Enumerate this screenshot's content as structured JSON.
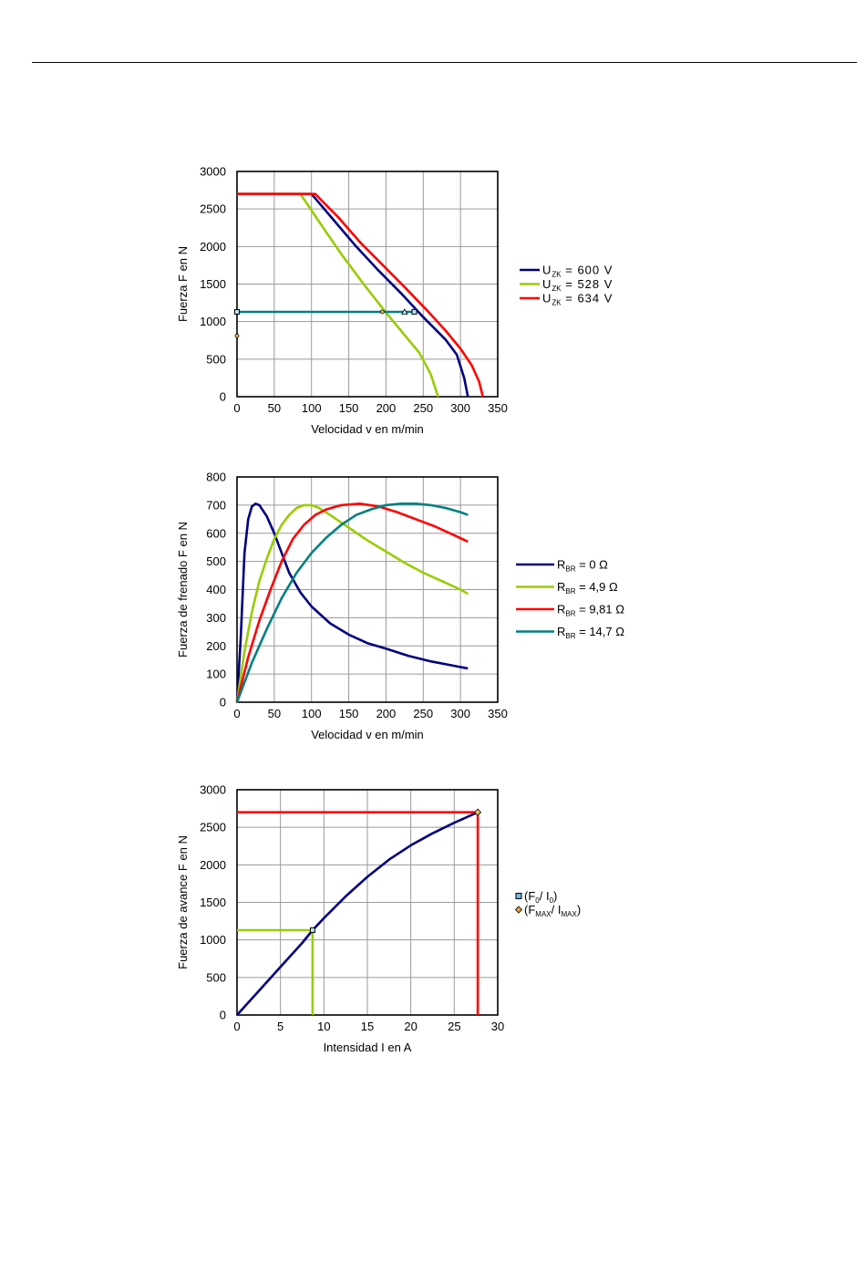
{
  "chart_data": [
    {
      "type": "line",
      "xlabel": "Velocidad v en m/min",
      "ylabel": "Fuerza F en N",
      "xlim": [
        0,
        350
      ],
      "ylim": [
        0,
        3000
      ],
      "xticks": [
        "0",
        "50",
        "100",
        "150",
        "200",
        "250",
        "300",
        "350"
      ],
      "yticks": [
        "0",
        "500",
        "1000",
        "1500",
        "2000",
        "2500",
        "3000"
      ],
      "grid": true,
      "legend_position": "right",
      "series": [
        {
          "name_main": "U",
          "name_sub": "ZK",
          "name_rest": " = 600 V",
          "color": "#000080",
          "points": [
            [
              0,
              2700
            ],
            [
              100,
              2700
            ],
            [
              130,
              2350
            ],
            [
              160,
              2000
            ],
            [
              190,
              1680
            ],
            [
              220,
              1380
            ],
            [
              250,
              1060
            ],
            [
              280,
              760
            ],
            [
              295,
              560
            ],
            [
              305,
              250
            ],
            [
              310,
              0
            ]
          ]
        },
        {
          "name_main": "U",
          "name_sub": "ZK",
          "name_rest": " = 528 V",
          "color": "#99cc00",
          "points": [
            [
              0,
              2700
            ],
            [
              85,
              2700
            ],
            [
              115,
              2260
            ],
            [
              140,
              1900
            ],
            [
              170,
              1500
            ],
            [
              200,
              1120
            ],
            [
              220,
              880
            ],
            [
              245,
              580
            ],
            [
              260,
              300
            ],
            [
              270,
              0
            ]
          ]
        },
        {
          "name_main": "U",
          "name_sub": "ZK",
          "name_rest": " = 634 V",
          "color": "#ff0000",
          "points": [
            [
              0,
              2700
            ],
            [
              105,
              2700
            ],
            [
              135,
              2400
            ],
            [
              165,
              2060
            ],
            [
              195,
              1760
            ],
            [
              225,
              1460
            ],
            [
              255,
              1150
            ],
            [
              280,
              880
            ],
            [
              300,
              640
            ],
            [
              315,
              420
            ],
            [
              325,
              200
            ],
            [
              330,
              0
            ]
          ]
        },
        {
          "name": "",
          "color": "#008080",
          "points": [
            [
              0,
              1130
            ],
            [
              240,
              1130
            ]
          ]
        }
      ],
      "markers": [
        {
          "shape": "square",
          "x": 0,
          "y": 1130
        },
        {
          "shape": "circle",
          "x": 0,
          "y": 810
        },
        {
          "shape": "circle",
          "x": 195,
          "y": 1130
        },
        {
          "shape": "triangle",
          "x": 225,
          "y": 1130
        },
        {
          "shape": "square",
          "x": 238,
          "y": 1130
        }
      ]
    },
    {
      "type": "line",
      "xlabel": "Velocidad v en m/min",
      "ylabel": "Fuerza de frenado F en N",
      "xlim": [
        0,
        350
      ],
      "ylim": [
        0,
        800
      ],
      "xticks": [
        "0",
        "50",
        "100",
        "150",
        "200",
        "250",
        "300",
        "350"
      ],
      "yticks": [
        "0",
        "100",
        "200",
        "300",
        "400",
        "500",
        "600",
        "700",
        "800"
      ],
      "grid": true,
      "legend_position": "right",
      "series": [
        {
          "name_main": "R",
          "name_sub": "BR",
          "name_rest": " = 0 Ω",
          "color": "#000080",
          "points": [
            [
              0,
              0
            ],
            [
              5,
              230
            ],
            [
              10,
              530
            ],
            [
              15,
              650
            ],
            [
              20,
              695
            ],
            [
              25,
              705
            ],
            [
              30,
              700
            ],
            [
              40,
              660
            ],
            [
              50,
              600
            ],
            [
              60,
              530
            ],
            [
              70,
              460
            ],
            [
              85,
              390
            ],
            [
              100,
              340
            ],
            [
              125,
              280
            ],
            [
              150,
              240
            ],
            [
              175,
              210
            ],
            [
              200,
              190
            ],
            [
              230,
              165
            ],
            [
              260,
              145
            ],
            [
              290,
              130
            ],
            [
              310,
              120
            ]
          ]
        },
        {
          "name_main": "R",
          "name_sub": "BR",
          "name_rest": " = 4,9 Ω",
          "color": "#99cc00",
          "points": [
            [
              0,
              0
            ],
            [
              10,
              180
            ],
            [
              20,
              320
            ],
            [
              30,
              430
            ],
            [
              40,
              510
            ],
            [
              50,
              580
            ],
            [
              60,
              630
            ],
            [
              70,
              665
            ],
            [
              80,
              690
            ],
            [
              90,
              700
            ],
            [
              100,
              700
            ],
            [
              110,
              690
            ],
            [
              125,
              665
            ],
            [
              150,
              620
            ],
            [
              175,
              575
            ],
            [
              200,
              535
            ],
            [
              225,
              495
            ],
            [
              250,
              460
            ],
            [
              275,
              430
            ],
            [
              300,
              400
            ],
            [
              310,
              385
            ]
          ]
        },
        {
          "name_main": "R",
          "name_sub": "BR",
          "name_rest": " = 9,81 Ω",
          "color": "#ff0000",
          "points": [
            [
              0,
              0
            ],
            [
              15,
              160
            ],
            [
              30,
              290
            ],
            [
              45,
              400
            ],
            [
              60,
              500
            ],
            [
              75,
              580
            ],
            [
              90,
              630
            ],
            [
              105,
              665
            ],
            [
              120,
              685
            ],
            [
              140,
              700
            ],
            [
              165,
              705
            ],
            [
              190,
              695
            ],
            [
              215,
              675
            ],
            [
              240,
              650
            ],
            [
              265,
              625
            ],
            [
              290,
              595
            ],
            [
              310,
              570
            ]
          ]
        },
        {
          "name_main": "R",
          "name_sub": "BR",
          "name_rest": " = 14,7 Ω",
          "color": "#008080",
          "points": [
            [
              0,
              0
            ],
            [
              20,
              140
            ],
            [
              40,
              260
            ],
            [
              60,
              370
            ],
            [
              80,
              460
            ],
            [
              100,
              530
            ],
            [
              120,
              585
            ],
            [
              140,
              630
            ],
            [
              160,
              665
            ],
            [
              180,
              685
            ],
            [
              200,
              700
            ],
            [
              220,
              705
            ],
            [
              240,
              705
            ],
            [
              260,
              700
            ],
            [
              280,
              690
            ],
            [
              300,
              675
            ],
            [
              310,
              665
            ]
          ]
        }
      ]
    },
    {
      "type": "line",
      "xlabel": "Intensidad I en A",
      "ylabel": "Fuerza de avance F en N",
      "xlim": [
        0,
        30
      ],
      "ylim": [
        0,
        3000
      ],
      "xticks": [
        "0",
        "5",
        "10",
        "15",
        "20",
        "25",
        "30"
      ],
      "yticks": [
        "0",
        "500",
        "1000",
        "1500",
        "2000",
        "2500",
        "3000"
      ],
      "grid": true,
      "legend_position": "right",
      "series": [
        {
          "name": "",
          "color": "#000080",
          "points": [
            [
              0,
              0
            ],
            [
              2.5,
              320
            ],
            [
              5,
              640
            ],
            [
              7.5,
              960
            ],
            [
              8.7,
              1130
            ],
            [
              10,
              1290
            ],
            [
              12.5,
              1580
            ],
            [
              15,
              1840
            ],
            [
              17.5,
              2070
            ],
            [
              20,
              2260
            ],
            [
              22.5,
              2420
            ],
            [
              25,
              2560
            ],
            [
              27.7,
              2700
            ]
          ]
        },
        {
          "name": "",
          "color": "#99cc00",
          "points": [
            [
              0,
              1130
            ],
            [
              8.7,
              1130
            ],
            [
              8.7,
              0
            ]
          ]
        },
        {
          "name": "",
          "color": "#ff0000",
          "points": [
            [
              0,
              2700
            ],
            [
              27.7,
              2700
            ],
            [
              27.7,
              0
            ]
          ]
        }
      ],
      "markers": [
        {
          "shape": "square",
          "x": 8.7,
          "y": 1130
        },
        {
          "shape": "diamond",
          "x": 27.7,
          "y": 2700
        }
      ],
      "legend": [
        {
          "shape": "square",
          "fill": "#6fb7e0",
          "open": "(F",
          "sub1": "0",
          "mid": " / I",
          "sub2": "0",
          "close": ")"
        },
        {
          "shape": "diamond",
          "fill": "#e8a040",
          "open": "(F",
          "sub1": "MAX",
          "mid": " / I",
          "sub2": "MAX",
          "close": ")"
        }
      ]
    }
  ]
}
